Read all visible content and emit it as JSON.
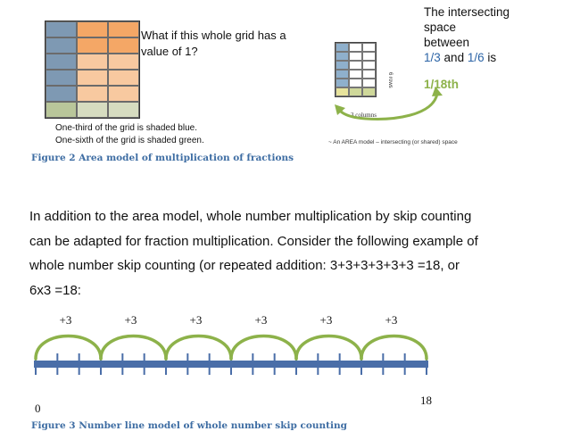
{
  "figure2": {
    "question": "What if this whole grid has a value of 1?",
    "left_caption_1": "One-third of the grid is shaded blue.",
    "left_caption_2": "One-sixth of the grid is shaded green.",
    "caption": "Figure 2 Area model of multiplication of fractions",
    "right_line_1": "The intersecting",
    "right_line_2": "space",
    "right_line_3": "between",
    "frac_a": "1/3",
    "and_word": "and",
    "frac_b": "1/6",
    "is_word": "is",
    "result": "1/18th",
    "rows_label": "6 rows",
    "columns_label": "3 columns",
    "area_note": "~ An AREA model – intersecting (or shared) space"
  },
  "paragraph": {
    "line1": "In addition to the area model, whole number multiplication by skip counting",
    "line2": "can be adapted for fraction multiplication. Consider the following example of",
    "line3": "whole number skip counting (or repeated addition: 3+3+3+3+3+3 =18, or",
    "line4": "6x3 =18:"
  },
  "figure3": {
    "jump_labels": [
      "+3",
      "+3",
      "+3",
      "+3",
      "+3",
      "+3"
    ],
    "start_label": "0",
    "end_label": "18",
    "caption": "Figure 3 Number line model of whole number skip counting",
    "start": 0,
    "end": 18,
    "jump_size": 3,
    "jump_count": 6
  },
  "colors": {
    "caption_blue": "#3e6da3",
    "arc_green": "#8db24a",
    "line_blue": "#4a6ea8"
  }
}
